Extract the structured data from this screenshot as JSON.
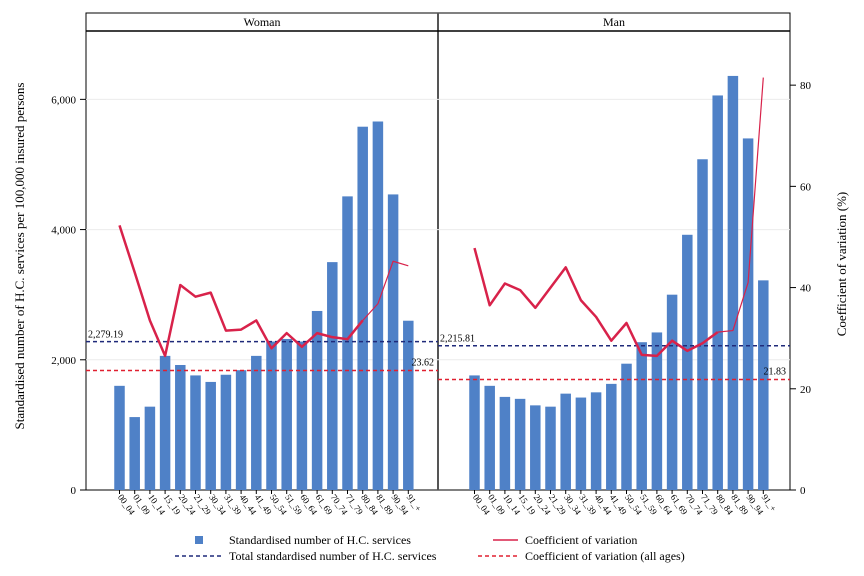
{
  "chart_data": {
    "type": "bar",
    "panels": [
      {
        "name": "Woman",
        "categories": [
          "00_04",
          "01_09",
          "10_14",
          "15_19",
          "20_24",
          "21_29",
          "30_34",
          "31_39",
          "40_44",
          "41_49",
          "50_54",
          "51_59",
          "60_64",
          "61_69",
          "70_74",
          "71_79",
          "80_84",
          "81_89",
          "90_94",
          "91_+"
        ],
        "bars": [
          1600,
          1120,
          1280,
          2060,
          1920,
          1760,
          1660,
          1770,
          1840,
          2060,
          2280,
          2320,
          2280,
          2750,
          3500,
          4510,
          5580,
          5660,
          4540,
          2600
        ],
        "cv": [
          52.3,
          43,
          33.5,
          26.5,
          40.5,
          38.2,
          39,
          31.5,
          31.7,
          33.5,
          28,
          31,
          28.3,
          31,
          30.2,
          29.8,
          33.5,
          36.8,
          45.2,
          44.3
        ],
        "total_label": "2,279.19",
        "total_value": 2279.19,
        "cv_all_label": "23.62",
        "cv_all_value": 23.62
      },
      {
        "name": "Man",
        "categories": [
          "00_04",
          "01_09",
          "10_14",
          "15_19",
          "20_24",
          "21_29",
          "30_34",
          "31_39",
          "40_44",
          "41_49",
          "50_54",
          "51_59",
          "60_64",
          "61_69",
          "70_74",
          "71_79",
          "80_84",
          "81_89",
          "90_94",
          "91_+"
        ],
        "bars": [
          1760,
          1600,
          1430,
          1400,
          1300,
          1280,
          1480,
          1420,
          1500,
          1630,
          1940,
          2270,
          2420,
          3000,
          3920,
          5080,
          6060,
          6360,
          5400,
          3220
        ],
        "cv": [
          47.8,
          36.5,
          40.8,
          39.5,
          36,
          40,
          44,
          37.5,
          34.2,
          29.5,
          33,
          26.7,
          26.5,
          29.5,
          27.5,
          29,
          31.2,
          31.5,
          41,
          81.5
        ],
        "total_label": "2,215.81",
        "total_value": 2215.81,
        "cv_all_label": "21.83",
        "cv_all_value": 21.83
      }
    ],
    "ylabel_left": "Standardised number of H.C. services per 100,000 insured persons",
    "ylabel_right": "Coefficient of variation (%)",
    "ylim_left": [
      0,
      7050
    ],
    "ylim_right": [
      0,
      90.7
    ],
    "yticks_left": [
      "0",
      "2,000",
      "4,000",
      "6,000"
    ],
    "yticks_left_values": [
      0,
      2000,
      4000,
      6000
    ],
    "yticks_right": [
      "0",
      "20",
      "40",
      "60",
      "80"
    ],
    "yticks_right_values": [
      0,
      20,
      40,
      60,
      80
    ],
    "legend_placement": "bottom",
    "legend": {
      "bars": "Standardised number of H.C. services",
      "cv": "Coefficient of variation",
      "total": "Total standardised number of H.C. services",
      "cv_all": "Coefficient of variation (all ages)"
    },
    "colors": {
      "bar": "#4f81c7",
      "cv": "#d8224a",
      "total": "#1f2a7a",
      "cv_all": "#e02030"
    }
  }
}
